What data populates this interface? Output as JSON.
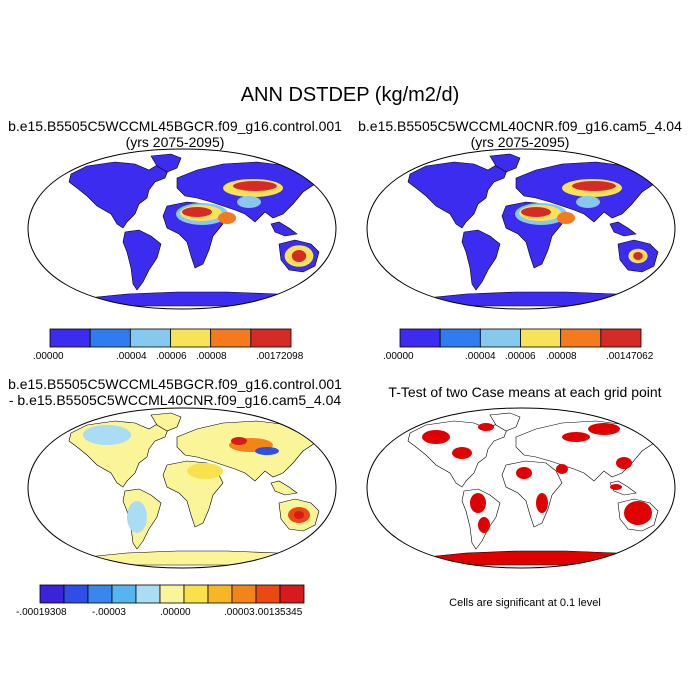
{
  "main_title": "ANN DSTDEP (kg/m2/d)",
  "panels": [
    {
      "line1": "b.e15.B5505C5WCCML45BGCR.f09_g16.control.001",
      "line2": "(yrs 2075-2095)"
    },
    {
      "line1": "b.e15.B5505C5WCCML40CNR.f09_g16.cam5_4.04",
      "line2": "(yrs 2075-2095)"
    },
    {
      "line1": "b.e15.B5505C5WCCML45BGCR.f09_g16.control.001",
      "line2": "- b.e15.B5505C5WCCML40CNR.f09_g16.cam5_4.04"
    },
    {
      "line1": "T-Test of two Case means at each grid point",
      "line2": ""
    }
  ],
  "colorbars": {
    "case1": {
      "colors": [
        "#3b2cf0",
        "#2f7cf0",
        "#86c8ee",
        "#f8e25a",
        "#f57a1e",
        "#d52a26"
      ],
      "labels": [
        ".00000",
        ".00004",
        ".00006",
        ".00008",
        ".00172098"
      ]
    },
    "case2": {
      "colors": [
        "#3b2cf0",
        "#2f7cf0",
        "#86c8ee",
        "#f8e25a",
        "#f57a1e",
        "#d52a26"
      ],
      "labels": [
        ".00000",
        ".00004",
        ".00006",
        ".00008",
        ".00147062"
      ]
    },
    "diff": {
      "colors": [
        "#3a23d8",
        "#2e4ee8",
        "#3a86ef",
        "#56b4ef",
        "#aadcf3",
        "#fbf59a",
        "#f8e14a",
        "#f5b726",
        "#f28418",
        "#ea4a12",
        "#d71a1a"
      ],
      "labels": [
        "-.00019308",
        "-.00003",
        ".00000",
        ".00003",
        ".00135345"
      ]
    }
  },
  "footnote": "Cells are significant at 0.1 level"
}
